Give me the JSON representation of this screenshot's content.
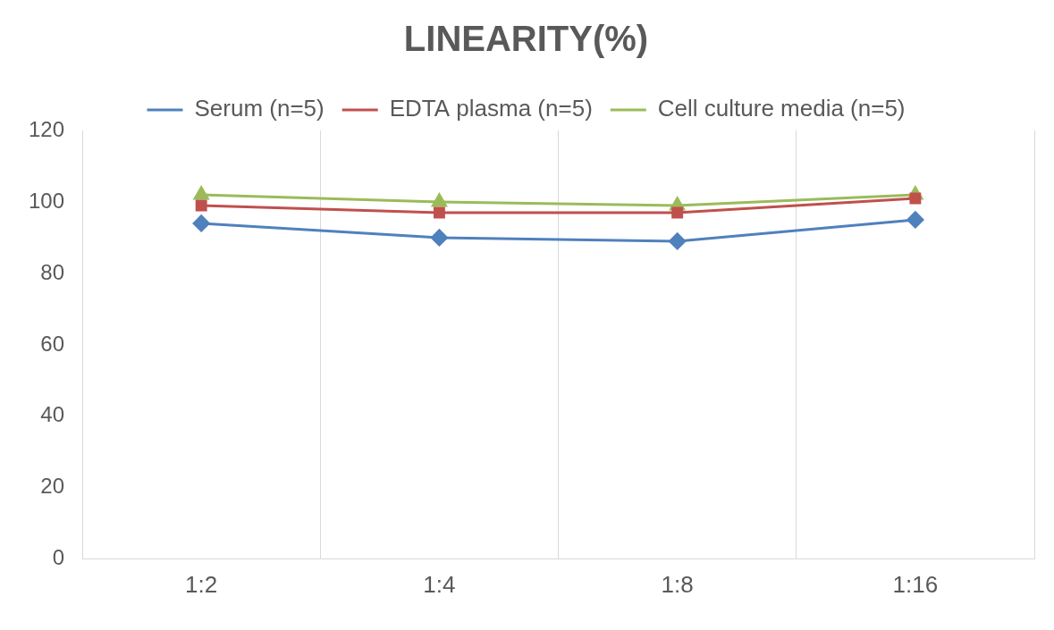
{
  "chart_data": {
    "type": "line",
    "title": "LINEARITY(%)",
    "categories": [
      "1:2",
      "1:4",
      "1:8",
      "1:16"
    ],
    "series": [
      {
        "name": "Serum (n=5)",
        "color": "#4f81bd",
        "marker": "diamond",
        "values": [
          94,
          90,
          89,
          95
        ]
      },
      {
        "name": "EDTA plasma (n=5)",
        "color": "#c0504d",
        "marker": "square",
        "values": [
          99,
          97,
          97,
          101
        ]
      },
      {
        "name": "Cell culture media (n=5)",
        "color": "#9bbb59",
        "marker": "triangle",
        "values": [
          102,
          100,
          99,
          102
        ]
      }
    ],
    "ylim": [
      0,
      120
    ],
    "yticks": [
      0,
      20,
      40,
      60,
      80,
      100,
      120
    ],
    "grid": true,
    "legend": "top"
  }
}
